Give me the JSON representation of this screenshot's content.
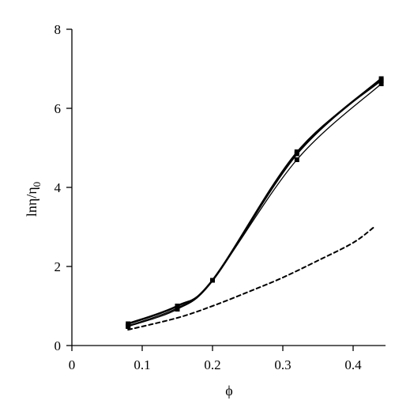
{
  "chart_data": {
    "type": "line",
    "title": "",
    "xlabel": "ϕ",
    "ylabel": "lnη/η0",
    "ylabel_parts": {
      "main": "lnη/η",
      "sub": "0"
    },
    "xlim": [
      0,
      0.44
    ],
    "ylim": [
      0,
      8
    ],
    "x_ticks": [
      0,
      0.1,
      0.2,
      0.3,
      0.4
    ],
    "x_tick_labels": [
      "0",
      "0.1",
      "0.2",
      "0.3",
      "0.4"
    ],
    "y_ticks": [
      0,
      2,
      4,
      6,
      8
    ],
    "y_tick_labels": [
      "0",
      "2",
      "4",
      "6",
      "8"
    ],
    "grid": false,
    "legend": "none",
    "series": [
      {
        "style": "solid-heavy",
        "x": [
          0.08,
          0.15,
          0.2,
          0.32,
          0.44
        ],
        "y": [
          0.55,
          1.0,
          1.65,
          4.85,
          6.75
        ]
      },
      {
        "style": "solid",
        "x": [
          0.08,
          0.15,
          0.2,
          0.32,
          0.44
        ],
        "y": [
          0.5,
          0.95,
          1.65,
          4.9,
          6.7
        ]
      },
      {
        "style": "solid",
        "x": [
          0.08,
          0.15,
          0.2,
          0.32,
          0.44
        ],
        "y": [
          0.48,
          0.92,
          1.65,
          4.7,
          6.62
        ]
      },
      {
        "style": "dashed",
        "x": [
          0.08,
          0.15,
          0.2,
          0.25,
          0.3,
          0.35,
          0.4,
          0.43
        ],
        "y": [
          0.4,
          0.7,
          1.0,
          1.35,
          1.72,
          2.15,
          2.6,
          3.0
        ]
      }
    ]
  }
}
